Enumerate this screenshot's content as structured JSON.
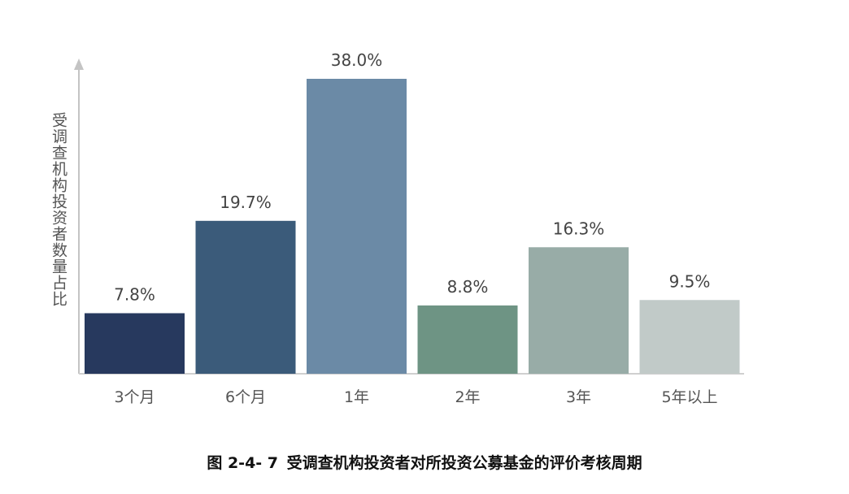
{
  "chart_data": {
    "type": "bar",
    "categories": [
      "3个月",
      "6个月",
      "1年",
      "2年",
      "3年",
      "5年以上"
    ],
    "values": [
      7.8,
      19.7,
      38.0,
      8.8,
      16.3,
      9.5
    ],
    "value_labels": [
      "7.8%",
      "19.7%",
      "38.0%",
      "8.8%",
      "16.3%",
      "9.5%"
    ],
    "colors": [
      "#27395e",
      "#3b5b7a",
      "#6b8aa6",
      "#6e9484",
      "#98aca7",
      "#c1cac8"
    ],
    "ylabel": "受调查机构投资者数量占比",
    "ylim": [
      0,
      40
    ],
    "grid": false,
    "legend": "none"
  },
  "caption": {
    "number": "图 2-4- 7",
    "text": "受调查机构投资者对所投资公募基金的评价考核周期"
  }
}
